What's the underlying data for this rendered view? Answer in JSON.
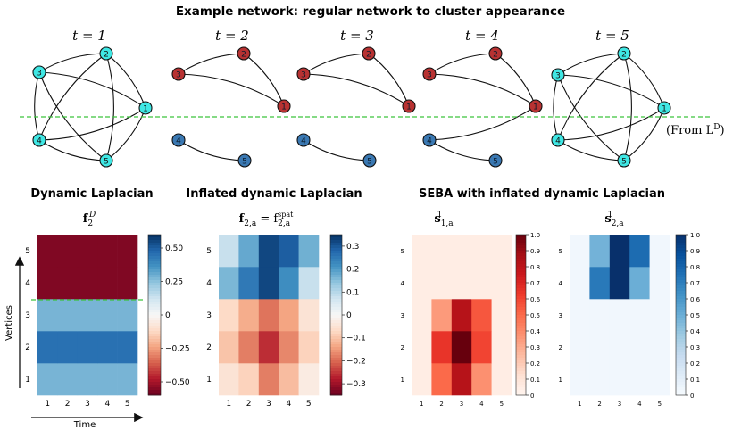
{
  "title": "Example network: regular network to cluster appearance",
  "time_labels": [
    "t = 1",
    "t = 2",
    "t = 3",
    "t = 4",
    "t = 5"
  ],
  "from_label": "(From L",
  "from_label_sup": "D",
  "from_label_close": ")",
  "sections": {
    "dynamic": "Dynamic Laplacian",
    "inflated": "Inflated dynamic Laplacian",
    "seba": "SEBA with inflated dynamic Laplacian"
  },
  "panel_titles": {
    "f2D": "f",
    "f2D_sub": "2",
    "f2D_sup": "D",
    "f2a": "f",
    "f2a_sub": "2,a",
    "f2a_eq": " = f",
    "f2a_sub2": "2,a",
    "f2a_sup2": "spat",
    "s1": "s",
    "s1_sub": "1,a",
    "s1_sup": "1",
    "s2": "s",
    "s2_sub": "2,a",
    "s2_sup": "1"
  },
  "axis_labels": {
    "vertices": "Vertices",
    "time": "Time"
  },
  "colors": {
    "node_full": "#3fe7e4",
    "node_red": "#b83232",
    "node_blue": "#3a78b2",
    "dashed_line": "#3cc43c"
  },
  "network": {
    "snapshots": [
      {
        "t": 1,
        "nodes": [
          {
            "id": "1",
            "group": "full"
          },
          {
            "id": "2",
            "group": "full"
          },
          {
            "id": "3",
            "group": "full"
          },
          {
            "id": "4",
            "group": "full"
          },
          {
            "id": "5",
            "group": "full"
          }
        ],
        "edges": [
          [
            "1",
            "2"
          ],
          [
            "1",
            "3"
          ],
          [
            "1",
            "4"
          ],
          [
            "1",
            "5"
          ],
          [
            "2",
            "3"
          ],
          [
            "2",
            "4"
          ],
          [
            "2",
            "5"
          ],
          [
            "3",
            "4"
          ],
          [
            "3",
            "5"
          ],
          [
            "4",
            "5"
          ]
        ]
      },
      {
        "t": 2,
        "nodes": [
          {
            "id": "1",
            "group": "red"
          },
          {
            "id": "2",
            "group": "red"
          },
          {
            "id": "3",
            "group": "red"
          },
          {
            "id": "4",
            "group": "blue"
          },
          {
            "id": "5",
            "group": "blue"
          }
        ],
        "edges": [
          [
            "1",
            "2"
          ],
          [
            "1",
            "3"
          ],
          [
            "2",
            "3"
          ],
          [
            "4",
            "5"
          ]
        ]
      },
      {
        "t": 3,
        "nodes": [
          {
            "id": "1",
            "group": "red"
          },
          {
            "id": "2",
            "group": "red"
          },
          {
            "id": "3",
            "group": "red"
          },
          {
            "id": "4",
            "group": "blue"
          },
          {
            "id": "5",
            "group": "blue"
          }
        ],
        "edges": [
          [
            "1",
            "2"
          ],
          [
            "1",
            "3"
          ],
          [
            "2",
            "3"
          ],
          [
            "4",
            "5"
          ]
        ]
      },
      {
        "t": 4,
        "nodes": [
          {
            "id": "1",
            "group": "red"
          },
          {
            "id": "2",
            "group": "red"
          },
          {
            "id": "3",
            "group": "red"
          },
          {
            "id": "4",
            "group": "blue"
          },
          {
            "id": "5",
            "group": "blue"
          }
        ],
        "edges": [
          [
            "1",
            "2"
          ],
          [
            "1",
            "3"
          ],
          [
            "2",
            "3"
          ],
          [
            "4",
            "5"
          ],
          [
            "1",
            "4"
          ]
        ]
      },
      {
        "t": 5,
        "nodes": [
          {
            "id": "1",
            "group": "full"
          },
          {
            "id": "2",
            "group": "full"
          },
          {
            "id": "3",
            "group": "full"
          },
          {
            "id": "4",
            "group": "full"
          },
          {
            "id": "5",
            "group": "full"
          }
        ],
        "edges": [
          [
            "1",
            "2"
          ],
          [
            "1",
            "3"
          ],
          [
            "1",
            "4"
          ],
          [
            "1",
            "5"
          ],
          [
            "2",
            "3"
          ],
          [
            "2",
            "4"
          ],
          [
            "2",
            "5"
          ],
          [
            "3",
            "4"
          ],
          [
            "3",
            "5"
          ],
          [
            "4",
            "5"
          ]
        ]
      }
    ]
  },
  "heatmaps": [
    {
      "id": "f2D",
      "cmap": "RdBu",
      "vmin": -0.6,
      "vmax": 0.6,
      "rows_bottom_to_top": [
        [
          0.28,
          0.28,
          0.28,
          0.28,
          0.28
        ],
        [
          0.45,
          0.45,
          0.45,
          0.45,
          0.45
        ],
        [
          0.28,
          0.28,
          0.28,
          0.28,
          0.28
        ],
        [
          -0.56,
          -0.56,
          -0.56,
          -0.56,
          -0.56
        ],
        [
          -0.56,
          -0.56,
          -0.56,
          -0.56,
          -0.56
        ]
      ],
      "xticks": [
        "1",
        "2",
        "3",
        "4",
        "5"
      ],
      "yticks": [
        "1",
        "2",
        "3",
        "4",
        "5"
      ],
      "cbar_ticks": [
        0.5,
        0.25,
        0,
        -0.25,
        -0.5
      ],
      "cbar_labels": [
        "0.50",
        "0.25",
        "0",
        "−0.25",
        "−0.50"
      ]
    },
    {
      "id": "f2a",
      "cmap": "RdBu",
      "vmin": -0.35,
      "vmax": 0.35,
      "rows_bottom_to_top": [
        [
          -0.05,
          -0.08,
          -0.18,
          -0.11,
          -0.03
        ],
        [
          -0.1,
          -0.18,
          -0.26,
          -0.17,
          -0.08
        ],
        [
          -0.07,
          -0.13,
          -0.19,
          -0.14,
          -0.05
        ],
        [
          0.16,
          0.25,
          0.32,
          0.22,
          0.08
        ],
        [
          0.08,
          0.18,
          0.32,
          0.29,
          0.17
        ]
      ],
      "xticks": [
        "1",
        "2",
        "3",
        "4",
        "5"
      ],
      "yticks": [
        "1",
        "2",
        "3",
        "4",
        "5"
      ],
      "cbar_ticks": [
        0.3,
        0.2,
        0.1,
        0,
        -0.1,
        -0.2,
        -0.3
      ],
      "cbar_labels": [
        "0.3",
        "0.2",
        "0.1",
        "0",
        "−0.1",
        "−0.2",
        "−0.3"
      ]
    },
    {
      "id": "s1",
      "cmap": "Reds",
      "vmin": 0,
      "vmax": 1,
      "rows_bottom_to_top": [
        [
          0.05,
          0.5,
          0.82,
          0.38,
          0.05
        ],
        [
          0.05,
          0.65,
          1.0,
          0.6,
          0.05
        ],
        [
          0.05,
          0.35,
          0.82,
          0.55,
          0.05
        ],
        [
          0.05,
          0.05,
          0.05,
          0.05,
          0.05
        ],
        [
          0.05,
          0.05,
          0.05,
          0.05,
          0.05
        ]
      ],
      "xticks": [
        "1",
        "2",
        "3",
        "4",
        "5"
      ],
      "yticks": [
        "1",
        "2",
        "3",
        "4",
        "5"
      ],
      "cbar_ticks": [
        1.0,
        0.9,
        0.8,
        0.7,
        0.6,
        0.5,
        0.4,
        0.3,
        0.2,
        0.1,
        0
      ],
      "cbar_labels": [
        "1.0",
        "0.9",
        "0.8",
        "0.7",
        "0.6",
        "0.5",
        "0.4",
        "0.3",
        "0.2",
        "0.1",
        "0"
      ]
    },
    {
      "id": "s2",
      "cmap": "Blues",
      "vmin": 0,
      "vmax": 1,
      "rows_bottom_to_top": [
        [
          0.03,
          0.03,
          0.03,
          0.03,
          0.03
        ],
        [
          0.03,
          0.03,
          0.03,
          0.03,
          0.03
        ],
        [
          0.03,
          0.03,
          0.03,
          0.03,
          0.03
        ],
        [
          0.03,
          0.72,
          1.0,
          0.5,
          0.03
        ],
        [
          0.03,
          0.48,
          1.0,
          0.77,
          0.03
        ]
      ],
      "xticks": [
        "1",
        "2",
        "3",
        "4",
        "5"
      ],
      "yticks": [
        "1",
        "2",
        "3",
        "4",
        "5"
      ],
      "cbar_ticks": [
        1.0,
        0.9,
        0.8,
        0.7,
        0.6,
        0.5,
        0.4,
        0.3,
        0.2,
        0.1,
        0
      ],
      "cbar_labels": [
        "1.0",
        "0.9",
        "0.8",
        "0.7",
        "0.6",
        "0.5",
        "0.4",
        "0.3",
        "0.2",
        "0.1",
        "0"
      ]
    }
  ]
}
